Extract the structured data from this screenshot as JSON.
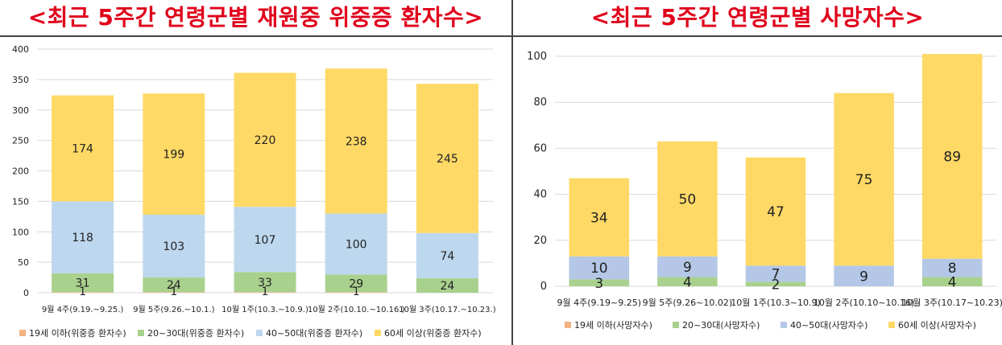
{
  "colors": {
    "title": "#e0001b",
    "age_19_under": "#f4b183",
    "age_20_30": "#a9d18e",
    "age_40_50_left": "#bdd7ee",
    "age_40_50_right": "#b4c7e7",
    "age_60_over": "#ffd966"
  },
  "chart_data": [
    {
      "type": "bar",
      "stacked": true,
      "title": "<최근 5주간 연령군별 재원중 위중증 환자수>",
      "categories": [
        "9월 4주(9.19.~9.25.)",
        "9월 5주(9.26.~10.1.)",
        "10월 1주(10.3.~10.9.)",
        "10월 2주(10.10.~10.16.)",
        "10월 3주(10.17.~10.23.)"
      ],
      "series": [
        {
          "name": "19세 이하(위중증 환자수)",
          "values": [
            1,
            1,
            1,
            1,
            0
          ],
          "labels": [
            "1",
            "1",
            "1",
            "1",
            ""
          ]
        },
        {
          "name": "20~30대(위중증 환자수)",
          "values": [
            31,
            24,
            33,
            29,
            24
          ],
          "labels": [
            "31",
            "24",
            "33",
            "29",
            "24"
          ]
        },
        {
          "name": "40~50대(위중증 환자수)",
          "values": [
            118,
            103,
            107,
            100,
            74
          ],
          "labels": [
            "118",
            "103",
            "107",
            "100",
            "74"
          ]
        },
        {
          "name": "60세 이상(위중증 환자수)",
          "values": [
            174,
            199,
            220,
            238,
            245
          ],
          "labels": [
            "174",
            "199",
            "220",
            "238",
            "245"
          ]
        }
      ],
      "ylim": [
        0,
        400
      ],
      "yticks": [
        0,
        50,
        100,
        150,
        200,
        250,
        300,
        350,
        400
      ],
      "grid": true,
      "legend": "bottom"
    },
    {
      "type": "bar",
      "stacked": true,
      "title": "<최근 5주간 연령군별 사망자수>",
      "categories": [
        "9월 4주(9.19~9.25)",
        "9월 5주(9.26~10.02)",
        "10월 1주(10.3~10.9)",
        "10월 2주(10.10~10.16)",
        "10월 3주(10.17~10.23)"
      ],
      "series": [
        {
          "name": "19세 이하(사망자수)",
          "values": [
            0,
            0,
            0,
            0,
            0
          ],
          "labels": [
            "",
            "",
            "",
            "",
            ""
          ]
        },
        {
          "name": "20~30대(사망자수)",
          "values": [
            3,
            4,
            2,
            0,
            4
          ],
          "labels": [
            "3",
            "4",
            "2",
            "",
            "4"
          ]
        },
        {
          "name": "40~50대(사망자수)",
          "values": [
            10,
            9,
            7,
            9,
            8
          ],
          "labels": [
            "10",
            "9",
            "7",
            "9",
            "8"
          ]
        },
        {
          "name": "60세 이상(사망자수)",
          "values": [
            34,
            50,
            47,
            75,
            89
          ],
          "labels": [
            "34",
            "50",
            "47",
            "75",
            "89"
          ]
        }
      ],
      "ylim": [
        0,
        100
      ],
      "yticks": [
        0,
        20,
        40,
        60,
        80,
        100
      ],
      "grid": true,
      "legend": "bottom"
    }
  ]
}
